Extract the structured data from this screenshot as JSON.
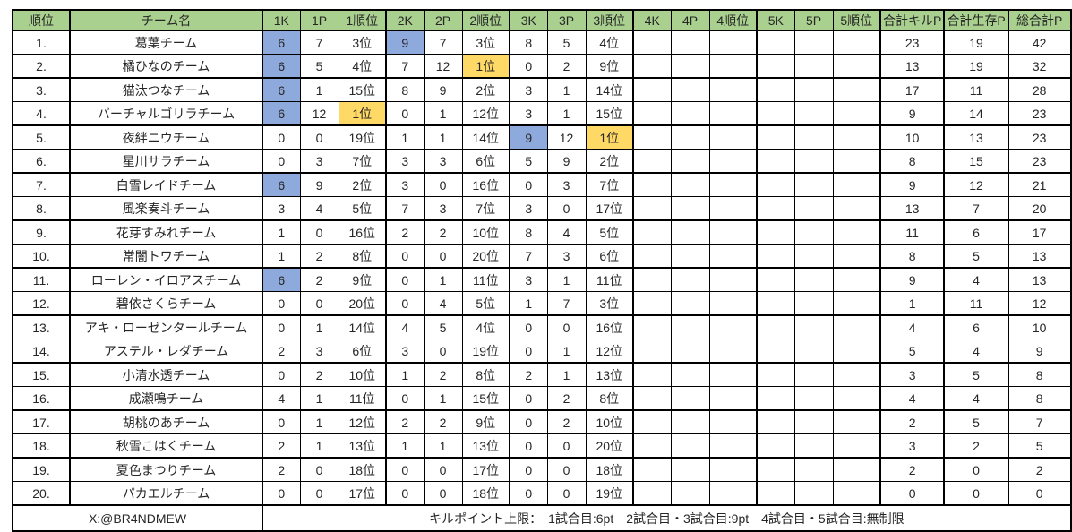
{
  "colors": {
    "header_bg": "#A9D08E",
    "highlight_blue": "#8EA9DB",
    "highlight_yellow": "#FFD966",
    "grid": "#000000"
  },
  "table": {
    "headers": [
      "順位",
      "チーム名",
      "1K",
      "1P",
      "1順位",
      "2K",
      "2P",
      "2順位",
      "3K",
      "3P",
      "3順位",
      "4K",
      "4P",
      "4順位",
      "5K",
      "5P",
      "5順位",
      "合計キルP",
      "合計生存P",
      "総合計P"
    ],
    "rows": [
      {
        "rank": "1.",
        "team": "葛葉チーム",
        "values": [
          "6",
          "7",
          "3位",
          "9",
          "7",
          "3位",
          "8",
          "5",
          "4位",
          "",
          "",
          "",
          "",
          "",
          "",
          "23",
          "19",
          "42"
        ],
        "highlights": {
          "blue": [
            0,
            3
          ],
          "yellow": []
        }
      },
      {
        "rank": "2.",
        "team": "橘ひなのチーム",
        "values": [
          "6",
          "5",
          "4位",
          "7",
          "12",
          "1位",
          "0",
          "2",
          "9位",
          "",
          "",
          "",
          "",
          "",
          "",
          "13",
          "19",
          "32"
        ],
        "highlights": {
          "blue": [
            0
          ],
          "yellow": [
            5
          ]
        }
      },
      {
        "rank": "3.",
        "team": "猫汰つなチーム",
        "values": [
          "6",
          "1",
          "15位",
          "8",
          "9",
          "2位",
          "3",
          "1",
          "14位",
          "",
          "",
          "",
          "",
          "",
          "",
          "17",
          "11",
          "28"
        ],
        "highlights": {
          "blue": [
            0
          ],
          "yellow": []
        }
      },
      {
        "rank": "4.",
        "team": "バーチャルゴリラチーム",
        "values": [
          "6",
          "12",
          "1位",
          "0",
          "1",
          "12位",
          "3",
          "1",
          "15位",
          "",
          "",
          "",
          "",
          "",
          "",
          "9",
          "14",
          "23"
        ],
        "highlights": {
          "blue": [
            0
          ],
          "yellow": [
            2
          ]
        }
      },
      {
        "rank": "5.",
        "team": "夜絆ニウチーム",
        "values": [
          "0",
          "0",
          "19位",
          "1",
          "1",
          "14位",
          "9",
          "12",
          "1位",
          "",
          "",
          "",
          "",
          "",
          "",
          "10",
          "13",
          "23"
        ],
        "highlights": {
          "blue": [
            6
          ],
          "yellow": [
            8
          ]
        }
      },
      {
        "rank": "6.",
        "team": "星川サラチーム",
        "values": [
          "0",
          "3",
          "7位",
          "3",
          "3",
          "6位",
          "5",
          "9",
          "2位",
          "",
          "",
          "",
          "",
          "",
          "",
          "8",
          "15",
          "23"
        ],
        "highlights": {
          "blue": [],
          "yellow": []
        }
      },
      {
        "rank": "7.",
        "team": "白雪レイドチーム",
        "values": [
          "6",
          "9",
          "2位",
          "3",
          "0",
          "16位",
          "0",
          "3",
          "7位",
          "",
          "",
          "",
          "",
          "",
          "",
          "9",
          "12",
          "21"
        ],
        "highlights": {
          "blue": [
            0
          ],
          "yellow": []
        }
      },
      {
        "rank": "8.",
        "team": "風楽奏斗チーム",
        "values": [
          "3",
          "4",
          "5位",
          "7",
          "3",
          "7位",
          "3",
          "0",
          "17位",
          "",
          "",
          "",
          "",
          "",
          "",
          "13",
          "7",
          "20"
        ],
        "highlights": {
          "blue": [],
          "yellow": []
        }
      },
      {
        "rank": "9.",
        "team": "花芽すみれチーム",
        "values": [
          "1",
          "0",
          "16位",
          "2",
          "2",
          "10位",
          "8",
          "4",
          "5位",
          "",
          "",
          "",
          "",
          "",
          "",
          "11",
          "6",
          "17"
        ],
        "highlights": {
          "blue": [],
          "yellow": []
        }
      },
      {
        "rank": "10.",
        "team": "常闇トワチーム",
        "values": [
          "1",
          "2",
          "8位",
          "0",
          "0",
          "20位",
          "7",
          "3",
          "6位",
          "",
          "",
          "",
          "",
          "",
          "",
          "8",
          "5",
          "13"
        ],
        "highlights": {
          "blue": [],
          "yellow": []
        }
      },
      {
        "rank": "11.",
        "team": "ローレン・イロアスチーム",
        "values": [
          "6",
          "2",
          "9位",
          "0",
          "1",
          "11位",
          "3",
          "1",
          "11位",
          "",
          "",
          "",
          "",
          "",
          "",
          "9",
          "4",
          "13"
        ],
        "highlights": {
          "blue": [
            0
          ],
          "yellow": []
        }
      },
      {
        "rank": "12.",
        "team": "碧依さくらチーム",
        "values": [
          "0",
          "0",
          "20位",
          "0",
          "4",
          "5位",
          "1",
          "7",
          "3位",
          "",
          "",
          "",
          "",
          "",
          "",
          "1",
          "11",
          "12"
        ],
        "highlights": {
          "blue": [],
          "yellow": []
        }
      },
      {
        "rank": "13.",
        "team": "アキ・ローゼンタールチーム",
        "values": [
          "0",
          "1",
          "14位",
          "4",
          "5",
          "4位",
          "0",
          "0",
          "16位",
          "",
          "",
          "",
          "",
          "",
          "",
          "4",
          "6",
          "10"
        ],
        "highlights": {
          "blue": [],
          "yellow": []
        }
      },
      {
        "rank": "14.",
        "team": "アステル・レダチーム",
        "values": [
          "2",
          "3",
          "6位",
          "3",
          "0",
          "19位",
          "0",
          "1",
          "12位",
          "",
          "",
          "",
          "",
          "",
          "",
          "5",
          "4",
          "9"
        ],
        "highlights": {
          "blue": [],
          "yellow": []
        }
      },
      {
        "rank": "15.",
        "team": "小清水透チーム",
        "values": [
          "0",
          "2",
          "10位",
          "1",
          "2",
          "8位",
          "2",
          "1",
          "13位",
          "",
          "",
          "",
          "",
          "",
          "",
          "3",
          "5",
          "8"
        ],
        "highlights": {
          "blue": [],
          "yellow": []
        }
      },
      {
        "rank": "16.",
        "team": "成瀬鳴チーム",
        "values": [
          "4",
          "1",
          "11位",
          "0",
          "1",
          "15位",
          "0",
          "2",
          "8位",
          "",
          "",
          "",
          "",
          "",
          "",
          "4",
          "4",
          "8"
        ],
        "highlights": {
          "blue": [],
          "yellow": []
        }
      },
      {
        "rank": "17.",
        "team": "胡桃のあチーム",
        "values": [
          "0",
          "1",
          "12位",
          "2",
          "2",
          "9位",
          "0",
          "2",
          "10位",
          "",
          "",
          "",
          "",
          "",
          "",
          "2",
          "5",
          "7"
        ],
        "highlights": {
          "blue": [],
          "yellow": []
        }
      },
      {
        "rank": "18.",
        "team": "秋雪こはくチーム",
        "values": [
          "2",
          "1",
          "13位",
          "1",
          "1",
          "13位",
          "0",
          "0",
          "20位",
          "",
          "",
          "",
          "",
          "",
          "",
          "3",
          "2",
          "5"
        ],
        "highlights": {
          "blue": [],
          "yellow": []
        }
      },
      {
        "rank": "19.",
        "team": "夏色まつりチーム",
        "values": [
          "2",
          "0",
          "18位",
          "0",
          "0",
          "17位",
          "0",
          "0",
          "18位",
          "",
          "",
          "",
          "",
          "",
          "",
          "2",
          "0",
          "2"
        ],
        "highlights": {
          "blue": [],
          "yellow": []
        }
      },
      {
        "rank": "20.",
        "team": "パカエルチーム",
        "values": [
          "0",
          "0",
          "17位",
          "0",
          "0",
          "18位",
          "0",
          "0",
          "19位",
          "",
          "",
          "",
          "",
          "",
          "",
          "0",
          "0",
          "0"
        ],
        "highlights": {
          "blue": [],
          "yellow": []
        }
      }
    ]
  },
  "footer": {
    "credit": "X:@BR4NDMEW",
    "kill_point_note": "キルポイント上限：　1試合目:6pt　2試合目・3試合目:9pt　4試合目・5試合目:無制限"
  }
}
